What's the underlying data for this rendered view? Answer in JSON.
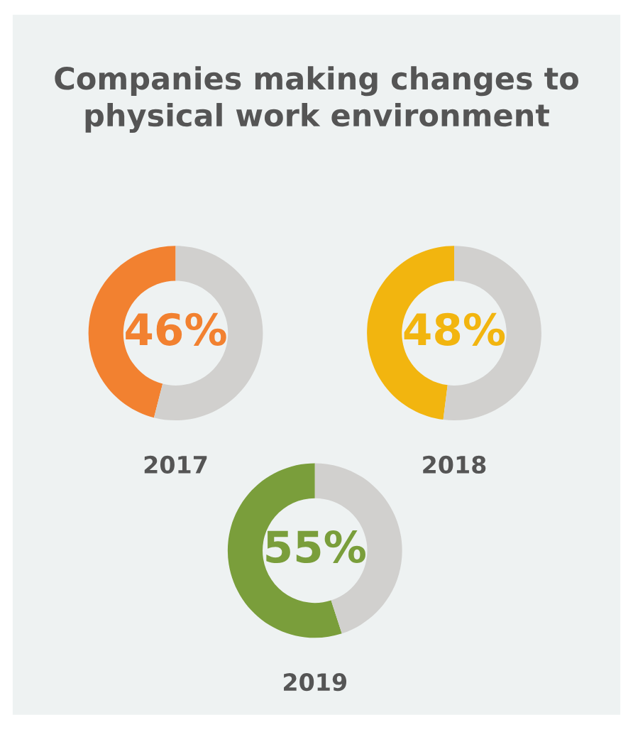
{
  "chart_data": [
    {
      "type": "donut",
      "title": "Companies making changes to\nphysical work environment",
      "xlabel": "2017",
      "categories": [
        null,
        null
      ],
      "values": [
        46,
        54
      ],
      "colors": [
        "#f28130",
        "#d1d0ce"
      ],
      "value_labels": [
        "46%",
        null
      ]
    },
    {
      "type": "donut",
      "xlabel": "2018",
      "categories": [
        null,
        null
      ],
      "values": [
        48,
        52
      ],
      "colors": [
        "#f2b50f",
        "#d1d0ce"
      ],
      "value_labels": [
        "48%",
        null
      ]
    },
    {
      "type": "donut",
      "xlabel": "2019",
      "categories": [
        null,
        null
      ],
      "values": [
        55,
        45
      ],
      "colors": [
        "#7a9e3b",
        "#d1d0ce"
      ],
      "value_labels": [
        "55%",
        null
      ]
    }
  ]
}
